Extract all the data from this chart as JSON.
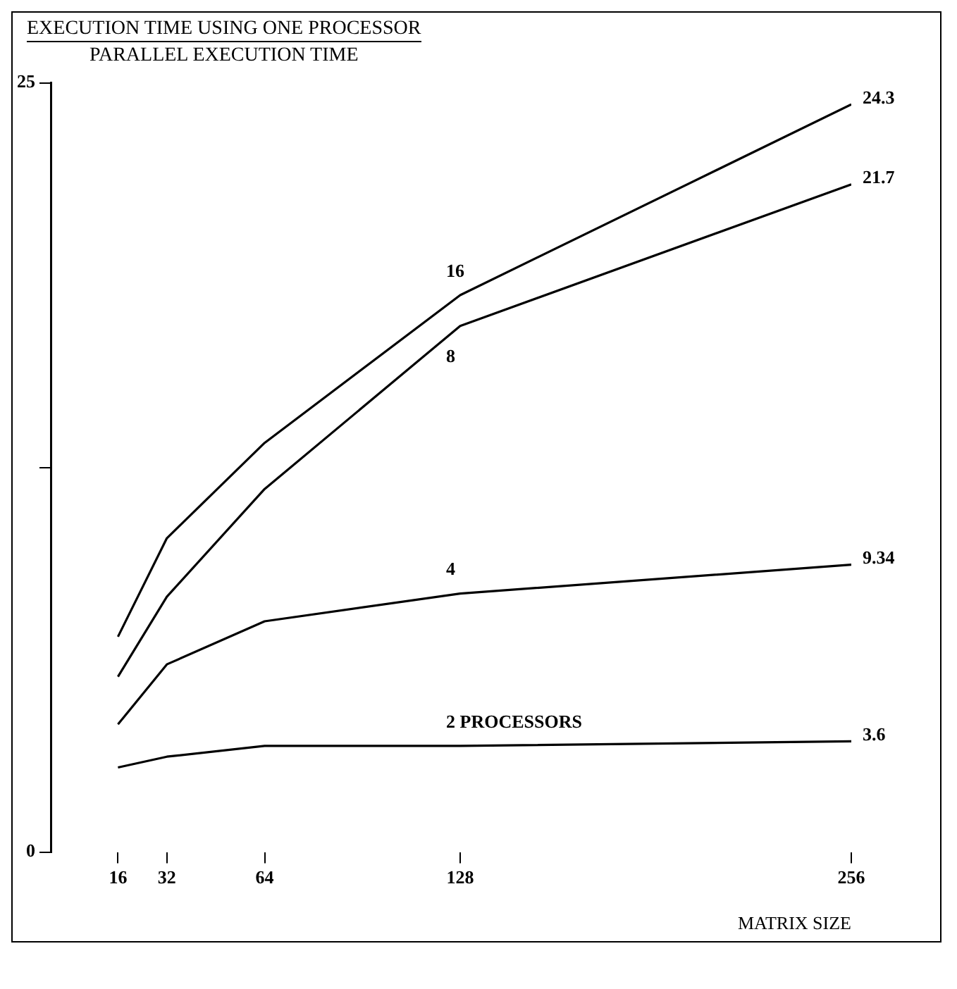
{
  "chart_data": {
    "type": "line",
    "title": "EXECUTION TIME USING ONE PROCESSOR",
    "subtitle": "PARALLEL EXECUTION TIME",
    "xlabel": "MATRIX SIZE",
    "x": [
      16,
      32,
      64,
      128,
      256
    ],
    "series": [
      {
        "name": "16",
        "color": "#000000",
        "values": [
          7.0,
          10.2,
          13.3,
          18.1,
          24.3
        ],
        "value_labels": [
          null,
          null,
          null,
          null,
          "24.3"
        ]
      },
      {
        "name": "8",
        "color": "#000000",
        "values": [
          5.7,
          8.3,
          11.8,
          17.1,
          21.7
        ],
        "value_labels": [
          null,
          null,
          null,
          null,
          "21.7"
        ]
      },
      {
        "name": "4",
        "color": "#000000",
        "values": [
          4.15,
          6.1,
          7.5,
          8.4,
          9.34
        ],
        "value_labels": [
          null,
          null,
          null,
          null,
          "9.34"
        ]
      },
      {
        "name": "2 PROCESSORS",
        "color": "#000000",
        "values": [
          2.75,
          3.1,
          3.45,
          3.45,
          3.6
        ],
        "value_labels": [
          null,
          null,
          null,
          null,
          "3.6"
        ]
      }
    ],
    "xlim": [
      -6,
      256
    ],
    "xticks": [
      16,
      32,
      64,
      128,
      256
    ],
    "ylim": [
      0,
      25
    ],
    "yticks": [
      0,
      {
        "value": 12.5,
        "label": null
      },
      25
    ],
    "grid": false,
    "legend": false,
    "marker": "none",
    "line_style": "solid"
  }
}
